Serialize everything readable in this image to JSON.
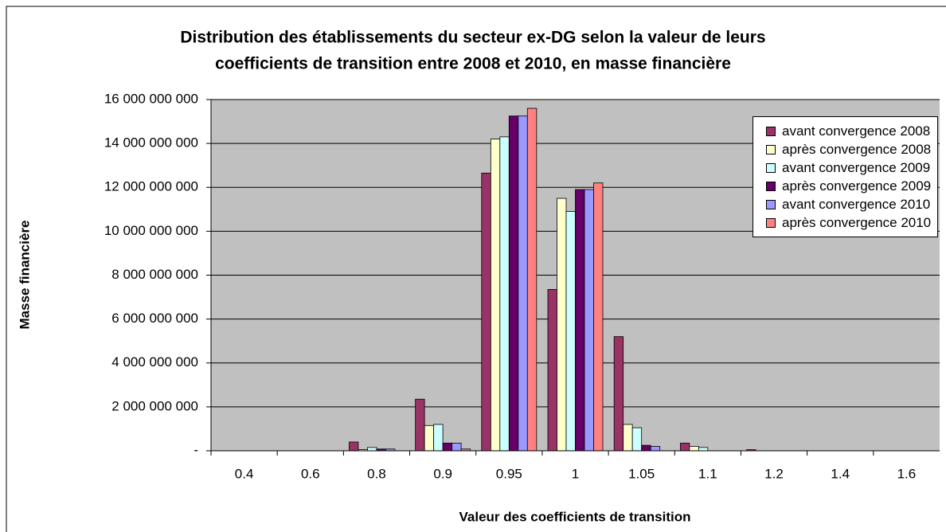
{
  "chart_data": {
    "type": "bar",
    "title": "Distribution des établissements du secteur ex-DG selon la valeur de leurs coefficients de transition entre 2008 et 2010, en masse financière",
    "title_lines": [
      "Distribution des établissements du secteur ex-DG selon la valeur de leurs",
      "coefficients de transition entre 2008 et 2010, en masse financière"
    ],
    "x_label": "Valeur des coefficients de transition",
    "y_label": "Masse financière",
    "categories": [
      "0.4",
      "0.6",
      "0.8",
      "0.9",
      "0.95",
      "1",
      "1.05",
      "1.1",
      "1.2",
      "1.4",
      "1.6"
    ],
    "series": [
      {
        "name": "avant convergence 2008",
        "color": "#993366",
        "values": [
          0,
          0,
          400000000,
          2350000000,
          12650000000,
          7350000000,
          5200000000,
          350000000,
          50000000,
          0,
          0
        ]
      },
      {
        "name": "après convergence 2008",
        "color": "#ffffcc",
        "values": [
          0,
          0,
          50000000,
          1150000000,
          14200000000,
          11500000000,
          1200000000,
          200000000,
          0,
          0,
          0
        ]
      },
      {
        "name": "avant convergence 2009",
        "color": "#ccffff",
        "values": [
          0,
          0,
          150000000,
          1200000000,
          14300000000,
          10900000000,
          1050000000,
          150000000,
          0,
          0,
          0
        ]
      },
      {
        "name": "après convergence 2009",
        "color": "#660066",
        "values": [
          0,
          0,
          80000000,
          350000000,
          15250000000,
          11900000000,
          250000000,
          0,
          0,
          0,
          0
        ]
      },
      {
        "name": "avant convergence 2010",
        "color": "#9999ff",
        "values": [
          0,
          0,
          80000000,
          350000000,
          15250000000,
          11900000000,
          200000000,
          0,
          0,
          0,
          0
        ]
      },
      {
        "name": "après convergence 2010",
        "color": "#ff8080",
        "values": [
          0,
          0,
          0,
          80000000,
          15600000000,
          12200000000,
          0,
          0,
          0,
          0,
          0
        ]
      }
    ],
    "ylim": [
      0,
      16000000000
    ],
    "yticks": [
      {
        "value": 0,
        "label": "-"
      },
      {
        "value": 2000000000,
        "label": "2 000 000 000"
      },
      {
        "value": 4000000000,
        "label": "4 000 000 000"
      },
      {
        "value": 6000000000,
        "label": "6 000 000 000"
      },
      {
        "value": 8000000000,
        "label": "8 000 000 000"
      },
      {
        "value": 10000000000,
        "label": "10 000 000 000"
      },
      {
        "value": 12000000000,
        "label": "12 000 000 000"
      },
      {
        "value": 14000000000,
        "label": "14 000 000 000"
      },
      {
        "value": 16000000000,
        "label": "16 000 000 000"
      }
    ],
    "grid": true,
    "plot_background": "#c0c0c0",
    "legend": "right"
  }
}
